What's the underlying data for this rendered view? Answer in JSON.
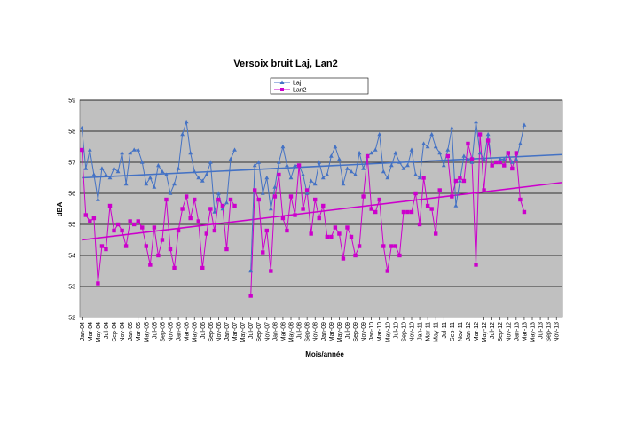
{
  "chart_data": {
    "type": "line",
    "title": "Versoix bruit Laj, Lan2",
    "xlabel": "Mois/année",
    "ylabel": "dBA",
    "ylim": [
      52,
      59
    ],
    "yticks": [
      52,
      53,
      54,
      55,
      56,
      57,
      58,
      59
    ],
    "grid": true,
    "legend_position": "top-center",
    "plot_background": "#c0c0c0",
    "x_tick_labels": [
      "Jan-04",
      "Mar-04",
      "May-04",
      "Jul-04",
      "Sep-04",
      "Nov-04",
      "Jan-05",
      "Mar-05",
      "May-05",
      "Jul-05",
      "Sep-05",
      "Nov-05",
      "Jan-06",
      "Mar-06",
      "May-06",
      "Jul-06",
      "Sep-06",
      "Nov-06",
      "Jan-07",
      "Mar-07",
      "May-07",
      "Jul-07",
      "Sep-07",
      "Nov-07",
      "Jan-08",
      "Mar-08",
      "May-08",
      "Jul-08",
      "Sep-08",
      "Nov-08",
      "Jan-09",
      "Mar-09",
      "May-09",
      "Jul-09",
      "Sep-09",
      "Nov-09",
      "Jan-10",
      "Mar-10",
      "May-10",
      "Jul-10",
      "Sep-10",
      "Nov-10",
      "Jan-11",
      "Mar-11",
      "May-11",
      "Jul-11",
      "Sep-11",
      "Nov-11",
      "Jan-12",
      "Mar-12",
      "May-12",
      "Jul-12",
      "Sep-12",
      "Nov-12",
      "Jan-13",
      "Mar-13",
      "May-13",
      "Jul-13",
      "Sep-13",
      "Nov-13"
    ],
    "series": [
      {
        "name": "Laj",
        "color": "#4472c4",
        "marker": "triangle",
        "values": [
          58.1,
          56.8,
          57.4,
          56.6,
          55.8,
          56.8,
          56.6,
          56.5,
          56.8,
          56.7,
          57.3,
          56.3,
          57.3,
          57.4,
          57.4,
          57.0,
          56.3,
          56.5,
          56.2,
          56.9,
          56.7,
          56.6,
          56.0,
          56.3,
          56.8,
          57.9,
          58.3,
          57.3,
          56.7,
          56.5,
          56.4,
          56.6,
          57.0,
          55.4,
          56.0,
          55.5,
          55.7,
          57.1,
          57.4,
          null,
          null,
          null,
          53.5,
          56.9,
          57.0,
          56.0,
          56.5,
          55.5,
          56.2,
          57.0,
          57.5,
          56.9,
          56.5,
          56.9,
          56.9,
          56.6,
          56.0,
          56.4,
          56.3,
          57.0,
          56.5,
          56.6,
          57.2,
          57.5,
          57.1,
          56.3,
          56.8,
          56.7,
          56.6,
          57.3,
          56.8,
          57.2,
          57.3,
          57.4,
          57.9,
          56.7,
          56.5,
          56.9,
          57.3,
          57.0,
          56.8,
          56.9,
          57.4,
          56.6,
          56.5,
          57.6,
          57.5,
          57.9,
          57.5,
          57.3,
          56.9,
          57.4,
          58.1,
          55.6,
          56.4,
          57.2,
          57.1,
          57.0,
          58.3,
          57.3,
          57.1,
          57.9,
          56.9,
          57.0,
          57.1,
          57.1,
          57.3,
          57.0,
          57.1,
          57.6,
          58.2
        ],
        "trend": [
          56.5,
          57.25
        ]
      },
      {
        "name": "Lan2",
        "color": "#cc00cc",
        "marker": "square",
        "values": [
          57.4,
          55.3,
          55.1,
          55.2,
          53.1,
          54.3,
          54.2,
          55.6,
          54.8,
          55.0,
          54.8,
          54.3,
          55.1,
          55.0,
          55.1,
          54.9,
          54.3,
          53.7,
          54.9,
          54.0,
          54.5,
          55.8,
          54.2,
          53.6,
          54.8,
          55.5,
          55.9,
          55.2,
          55.8,
          55.1,
          53.6,
          54.7,
          55.5,
          54.8,
          55.8,
          55.6,
          54.2,
          55.8,
          55.6,
          null,
          null,
          null,
          52.7,
          56.1,
          55.8,
          54.1,
          54.8,
          53.5,
          55.9,
          56.6,
          55.2,
          54.8,
          55.9,
          55.3,
          56.9,
          55.5,
          56.1,
          54.7,
          55.8,
          55.2,
          55.6,
          54.6,
          54.6,
          54.9,
          54.7,
          53.9,
          54.9,
          54.6,
          54.0,
          54.3,
          55.9,
          57.2,
          55.5,
          55.4,
          55.8,
          54.3,
          53.5,
          54.3,
          54.3,
          54.0,
          55.4,
          55.4,
          55.4,
          56.0,
          55.0,
          56.5,
          55.6,
          55.5,
          54.7,
          56.1,
          null,
          57.2,
          55.9,
          56.4,
          56.5,
          56.4,
          57.6,
          57.1,
          53.7,
          57.9,
          56.1,
          57.7,
          56.9,
          57.0,
          57.0,
          56.9,
          57.3,
          56.8,
          57.3,
          55.8,
          55.4
        ],
        "trend": [
          54.5,
          56.35
        ]
      }
    ]
  }
}
